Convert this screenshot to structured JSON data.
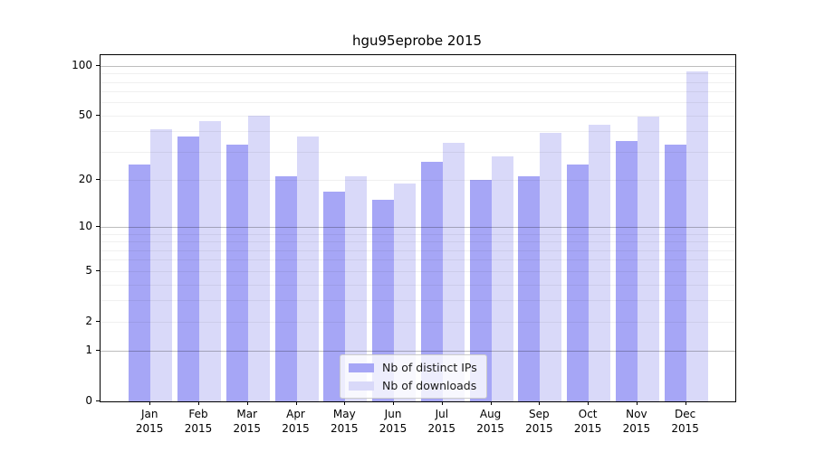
{
  "title": "hgu95eprobe 2015",
  "chart_data": {
    "type": "bar",
    "title": "hgu95eprobe 2015",
    "categories": [
      "Jan 2015",
      "Feb 2015",
      "Mar 2015",
      "Apr 2015",
      "May 2015",
      "Jun 2015",
      "Jul 2015",
      "Aug 2015",
      "Sep 2015",
      "Oct 2015",
      "Nov 2015",
      "Dec 2015"
    ],
    "series": [
      {
        "name": "Nb of distinct IPs",
        "color": "#a6a6f6",
        "values": [
          25,
          37,
          33,
          21,
          17,
          15,
          26,
          20,
          21,
          25,
          35,
          33
        ]
      },
      {
        "name": "Nb of downloads",
        "color": "#d9d9f9",
        "values": [
          41,
          46,
          50,
          37,
          21,
          19,
          34,
          28,
          39,
          44,
          49,
          92
        ]
      }
    ],
    "xlabel": "",
    "ylabel": "",
    "yscale": "log1p",
    "yticks": [
      100,
      50,
      20,
      10,
      5,
      2,
      1,
      0
    ],
    "ylim": [
      0,
      110
    ],
    "grid": "horizontal major (1,10,100) + minor (2-9, 20-90)",
    "legend_position": "lower center"
  },
  "colors": {
    "background": "#ffffff",
    "spine": "#000000",
    "major_grid": "#bdbdbd",
    "minor_grid": "#ededed",
    "bar_ips": "#a6a6f6",
    "bar_downloads": "#d9d9f9"
  }
}
